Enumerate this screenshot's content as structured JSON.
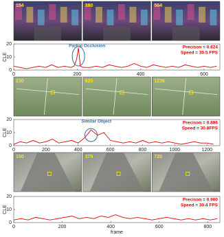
{
  "image_strips": [
    {
      "frames": [
        "154",
        "380",
        "564"
      ]
    },
    {
      "frames": [
        "230",
        "620",
        "1236"
      ]
    },
    {
      "frames": [
        "150",
        "375",
        "720"
      ]
    }
  ],
  "chart_data": [
    {
      "type": "line",
      "ylabel": "CLE",
      "color": "#e00000",
      "x": [
        0,
        20,
        40,
        60,
        80,
        100,
        120,
        140,
        160,
        180,
        190,
        198,
        204,
        210,
        220,
        240,
        260,
        280,
        300,
        320,
        340,
        360,
        380,
        400,
        420,
        440,
        460,
        480,
        500,
        520,
        540,
        560,
        580,
        600,
        620,
        640
      ],
      "values": [
        3,
        2,
        1,
        2,
        3,
        2,
        4,
        2,
        3,
        2,
        3,
        8,
        17,
        3,
        2,
        2,
        3,
        2,
        4,
        3,
        2,
        3,
        5,
        3,
        2,
        4,
        3,
        2,
        3,
        2,
        4,
        3,
        2,
        3,
        2,
        3
      ],
      "xlim": [
        0,
        650
      ],
      "xticks": [
        0,
        200,
        400,
        600
      ],
      "ylim": [
        0,
        20
      ],
      "yticks": [
        0,
        10,
        20
      ],
      "metrics": [
        "Precison = 0.824",
        "Speed = 30.5 FPS"
      ],
      "annotation": "Partial Occlusion"
    },
    {
      "type": "line",
      "ylabel": "CLE",
      "color": "#e00000",
      "x": [
        0,
        40,
        80,
        120,
        160,
        200,
        240,
        280,
        320,
        360,
        400,
        440,
        480,
        520,
        560,
        600,
        640,
        680,
        720,
        760,
        800,
        840,
        880,
        920,
        960,
        1000,
        1040,
        1080,
        1120,
        1160,
        1200,
        1240
      ],
      "values": [
        1,
        3,
        2,
        4,
        2,
        3,
        5,
        2,
        3,
        4,
        2,
        6,
        12,
        8,
        10,
        4,
        3,
        2,
        3,
        2,
        4,
        2,
        3,
        2,
        3,
        2,
        1,
        2,
        3,
        2,
        2,
        1
      ],
      "xlim": [
        0,
        1280
      ],
      "xticks": [
        0,
        200,
        400,
        600,
        800,
        1000,
        1200
      ],
      "ylim": [
        0,
        20
      ],
      "yticks": [
        0,
        10,
        20
      ],
      "metrics": [
        "Precison = 0.886",
        "Speed = 30.8FPS"
      ],
      "annotation": "Similar Object"
    },
    {
      "type": "line",
      "ylabel": "CLE",
      "xlabel": "frame",
      "color": "#e00000",
      "x": [
        0,
        30,
        60,
        90,
        120,
        150,
        180,
        210,
        240,
        270,
        300,
        330,
        360,
        390,
        420,
        450,
        480,
        510,
        540,
        570,
        600,
        630,
        660,
        690,
        720,
        750,
        780,
        810,
        840
      ],
      "values": [
        2,
        3,
        2,
        4,
        3,
        2,
        3,
        4,
        5,
        3,
        4,
        3,
        5,
        4,
        6,
        4,
        3,
        4,
        3,
        2,
        3,
        4,
        3,
        2,
        3,
        2,
        3,
        2,
        3
      ],
      "xlim": [
        0,
        850
      ],
      "xticks": [
        0,
        200,
        400,
        600,
        800
      ],
      "ylim": [
        0,
        20
      ],
      "yticks": [
        0,
        10,
        20
      ],
      "metrics": [
        "Precison = 0.900",
        "Speed = 30.4 FPS"
      ]
    }
  ]
}
